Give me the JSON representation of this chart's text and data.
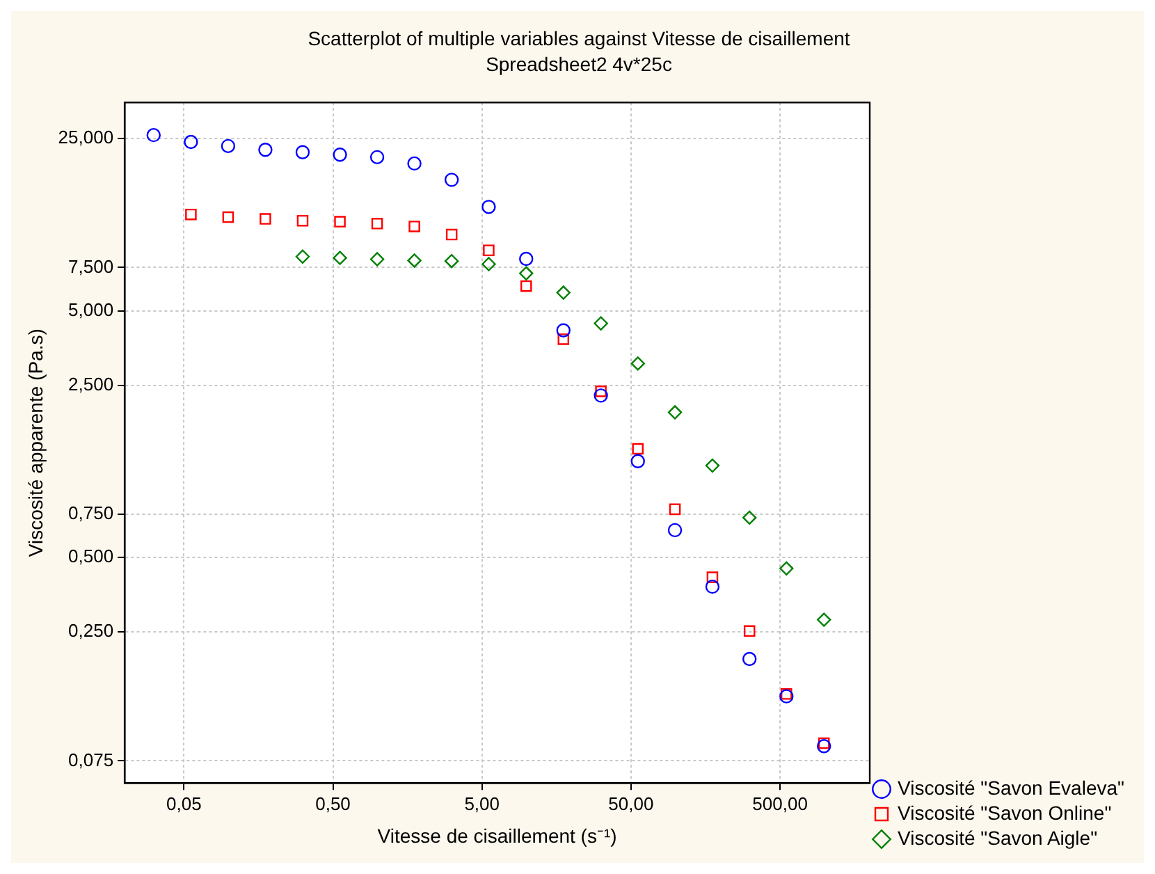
{
  "chart_data": {
    "type": "scatter",
    "title": "Scatterplot of multiple variables against Vitesse de cisaillement",
    "subtitle": "Spreadsheet2 4v*25c",
    "xlabel": "Vitesse de cisaillement (s⁻¹)",
    "ylabel": "Viscosité apparente (Pa.s)",
    "log": "xy",
    "grid": true,
    "legend": "bottom right",
    "xlim": [
      0.02,
      2000
    ],
    "xticks": [
      {
        "value": 0.05,
        "label": "0,05"
      },
      {
        "value": 0.5,
        "label": "0,50"
      },
      {
        "value": 5,
        "label": "5,00"
      },
      {
        "value": 50,
        "label": "50,00"
      },
      {
        "value": 500,
        "label": "500,00"
      }
    ],
    "ylim": [
      0.061,
      35
    ],
    "yticks": [
      {
        "value": 0.075,
        "label": "0,075"
      },
      {
        "value": 0.25,
        "label": "0,250"
      },
      {
        "value": 0.5,
        "label": "0,500"
      },
      {
        "value": 0.75,
        "label": "0,750"
      },
      {
        "value": 2.5,
        "label": "2,500"
      },
      {
        "value": 5,
        "label": "5,000"
      },
      {
        "value": 7.5,
        "label": "7,500"
      },
      {
        "value": 25,
        "label": "25,000"
      }
    ],
    "series": [
      {
        "name": "Viscosité \"Savon Evaleva\"",
        "color": "#0000ff",
        "marker": "circle",
        "x": [
          0.0313,
          0.0557,
          0.099,
          0.176,
          0.313,
          0.557,
          0.99,
          1.76,
          3.13,
          5.55,
          9.9,
          17.6,
          31.4,
          55.6,
          98.6,
          176,
          312,
          552,
          986
        ],
        "values": [
          25.8,
          24.2,
          23.3,
          22.5,
          22.0,
          21.5,
          21.0,
          19.8,
          17.0,
          13.2,
          8.13,
          4.17,
          2.27,
          1.23,
          0.646,
          0.381,
          0.194,
          0.137,
          0.086
        ]
      },
      {
        "name": "Viscosité \"Savon Online\"",
        "color": "#ff0000",
        "marker": "square",
        "x": [
          0.0557,
          0.099,
          0.176,
          0.313,
          0.557,
          0.99,
          1.76,
          3.13,
          5.55,
          9.9,
          17.6,
          31.4,
          55.6,
          98.6,
          176,
          312,
          552,
          986
        ],
        "values": [
          12.3,
          12.0,
          11.8,
          11.6,
          11.5,
          11.3,
          11.0,
          10.2,
          8.8,
          6.3,
          3.84,
          2.36,
          1.38,
          0.785,
          0.416,
          0.252,
          0.14,
          0.0885
        ]
      },
      {
        "name": "Viscosité \"Savon Aigle\"",
        "color": "#008000",
        "marker": "diamond",
        "x": [
          0.313,
          0.557,
          0.99,
          1.76,
          3.13,
          5.55,
          9.9,
          17.6,
          31.4,
          55.6,
          98.6,
          176,
          312,
          552,
          986
        ],
        "values": [
          8.3,
          8.2,
          8.1,
          8.0,
          7.96,
          7.74,
          7.1,
          5.93,
          4.45,
          3.06,
          1.94,
          1.18,
          0.726,
          0.452,
          0.28
        ]
      }
    ]
  }
}
